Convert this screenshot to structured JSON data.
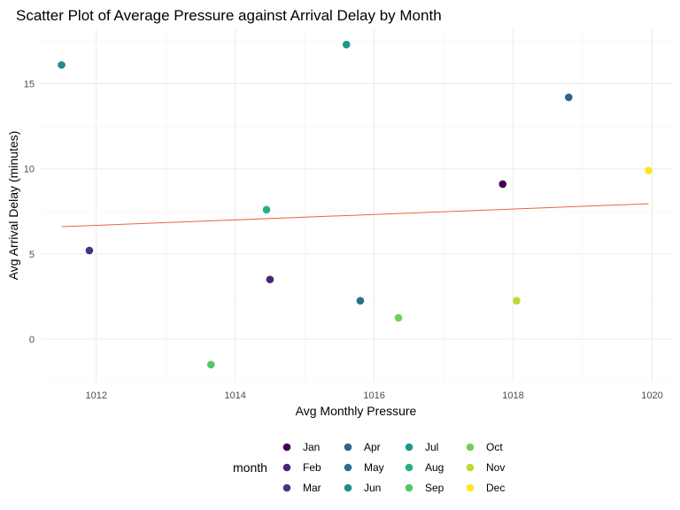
{
  "chart_data": {
    "type": "scatter",
    "title": "Scatter Plot of Average Pressure against Arrival Delay by Month",
    "xlabel": "Avg Monthly Pressure",
    "ylabel": "Avg Arrival Delay (minutes)",
    "xlim": [
      1011.2,
      1020.3
    ],
    "ylim": [
      -2.5,
      18.2
    ],
    "x_ticks": [
      1012,
      1014,
      1016,
      1018,
      1020
    ],
    "y_ticks": [
      0,
      5,
      10,
      15
    ],
    "grid": true,
    "legend": {
      "title": "month",
      "placement": "bottom"
    },
    "series": [
      {
        "name": "Jan",
        "color": "#440154",
        "x": 1017.85,
        "y": 9.1
      },
      {
        "name": "Feb",
        "color": "#482677",
        "x": 1014.5,
        "y": 3.5
      },
      {
        "name": "Mar",
        "color": "#453781",
        "x": 1011.9,
        "y": 5.2
      },
      {
        "name": "Apr",
        "color": "#33638d",
        "x": 1018.8,
        "y": 14.2
      },
      {
        "name": "May",
        "color": "#2d708e",
        "x": 1015.8,
        "y": 2.25
      },
      {
        "name": "Jun",
        "color": "#238a8d",
        "x": 1011.5,
        "y": 16.1
      },
      {
        "name": "Jul",
        "color": "#1f968b",
        "x": 1015.6,
        "y": 17.3
      },
      {
        "name": "Aug",
        "color": "#29af7f",
        "x": 1014.45,
        "y": 7.6
      },
      {
        "name": "Sep",
        "color": "#55c667",
        "x": 1013.65,
        "y": -1.5
      },
      {
        "name": "Oct",
        "color": "#73d055",
        "x": 1016.35,
        "y": 1.25
      },
      {
        "name": "Nov",
        "color": "#b8de29",
        "x": 1018.05,
        "y": 2.25
      },
      {
        "name": "Dec",
        "color": "#fde725",
        "x": 1019.95,
        "y": 9.9
      }
    ],
    "trendline": {
      "color": "#e36a3c",
      "x": [
        1011.5,
        1019.95
      ],
      "y": [
        6.6,
        7.95
      ]
    }
  }
}
